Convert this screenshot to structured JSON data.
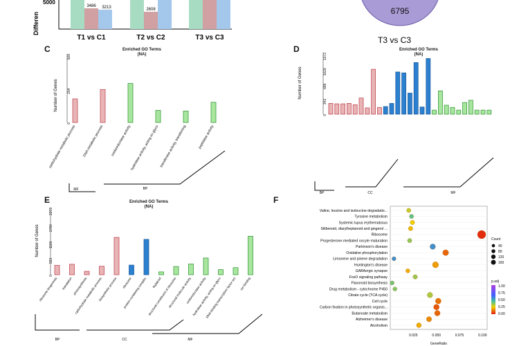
{
  "panels": {
    "A": {
      "ylabel": "Differen",
      "ytick": "5000",
      "categories": [
        "T1 vs C1",
        "T2 vs C2",
        "T3 vs C3"
      ],
      "bar_labels": [
        "3486",
        "3213",
        "2608"
      ]
    },
    "B": {
      "circle_value": "6795",
      "caption": "T3 vs C3"
    },
    "C": {
      "letter": "C",
      "title": "Enriched GO Terms",
      "subtitle": "(NA)",
      "ylabel": "Number of Genes",
      "yticks": [
        "509",
        "254",
        "0"
      ],
      "terms": [
        "carbohydrate metabolic process",
        "DNA metabolic process",
        "oxidoreductase activity",
        "hydrolase activity, acting on glyco",
        "transferase activity, transferring",
        "peptidase activity"
      ],
      "groups": [
        "MF",
        "BP"
      ]
    },
    "D": {
      "letter": "D",
      "title": "Enriched GO Terms",
      "subtitle": "(NA)",
      "ylabel": "Number of Genes",
      "yticks": [
        "1372",
        "1029",
        "686",
        "343",
        "0"
      ],
      "groups": [
        "BP",
        "CC",
        "MF"
      ]
    },
    "E": {
      "letter": "E",
      "title": "Enriched GO Terms",
      "subtitle": "(NA)",
      "ylabel": "Number of Genes",
      "yticks": [
        "2373",
        "1780",
        "1186",
        "593",
        "0"
      ],
      "terms": [
        "ribosome biogenesis",
        "translation",
        "photosynthesis",
        "carbohydrate metabolic process",
        "biosynthetic process",
        "ribosome",
        "protein-containing complex",
        "thylakoid",
        "structural constituent of ribosome",
        "structural molecule activity",
        "oxidoreductase activity",
        "hydrolase activity, acting on glyco",
        "DNA-binding transcription factor act",
        "ion binding"
      ],
      "groups": [
        "BP",
        "CC",
        "MF"
      ]
    },
    "F": {
      "letter": "F",
      "legend_count_title": "Count",
      "legend_count_values": [
        "40",
        "80",
        "120",
        "160"
      ],
      "legend_p_title": "p.adj",
      "legend_p_values": [
        "1.00",
        "0.75",
        "0.50",
        "0.25",
        "0.00"
      ],
      "xticks": [
        "0.025",
        "0.050",
        "0.075",
        "0.100"
      ],
      "xlabel": "GeneRatio"
    }
  },
  "chart_data": [
    {
      "type": "bar",
      "title": "Enriched GO Terms",
      "subtitle": "(NA)",
      "ylabel": "Number of Genes",
      "ylim": [
        0,
        509
      ],
      "categories": [
        "carbohydrate metabolic process",
        "DNA metabolic process",
        "oxidoreductase activity",
        "hydrolase activity, acting on glyco",
        "transferase activity, transferring",
        "peptidase activity"
      ],
      "values": [
        175,
        245,
        290,
        90,
        85,
        150
      ],
      "groups": [
        "BP",
        "BP",
        "MF",
        "MF",
        "MF",
        "MF"
      ]
    },
    {
      "type": "bar",
      "title": "Enriched GO Terms",
      "subtitle": "(NA)",
      "ylabel": "Number of Genes",
      "ylim": [
        0,
        1372
      ],
      "values": [
        240,
        230,
        230,
        240,
        210,
        360,
        140,
        1000,
        150,
        170,
        240,
        940,
        920,
        470,
        1150,
        160,
        1240,
        90,
        520,
        200,
        150,
        90,
        260,
        310,
        90,
        90,
        90
      ],
      "groups": [
        "BP",
        "BP",
        "BP",
        "BP",
        "BP",
        "BP",
        "BP",
        "BP",
        "BP",
        "CC",
        "CC",
        "CC",
        "CC",
        "CC",
        "CC",
        "CC",
        "CC",
        "MF",
        "MF",
        "MF",
        "MF",
        "MF",
        "MF",
        "MF",
        "MF",
        "MF",
        "MF"
      ]
    },
    {
      "type": "bar",
      "title": "Enriched GO Terms",
      "subtitle": "(NA)",
      "ylabel": "Number of Genes",
      "ylim": [
        0,
        2373
      ],
      "categories": [
        "ribosome biogenesis",
        "translation",
        "photosynthesis",
        "carbohydrate metabolic process",
        "biosynthetic process",
        "ribosome",
        "protein-containing complex",
        "thylakoid",
        "structural constituent of ribosome",
        "structural molecule activity",
        "oxidoreductase activity",
        "hydrolase activity, acting on glyco",
        "DNA-binding transcription factor act",
        "ion binding"
      ],
      "values": [
        330,
        370,
        120,
        300,
        1320,
        340,
        1250,
        100,
        290,
        380,
        590,
        180,
        250,
        1360
      ],
      "groups": [
        "BP",
        "BP",
        "BP",
        "BP",
        "BP",
        "CC",
        "CC",
        "MF",
        "MF",
        "MF",
        "MF",
        "MF",
        "MF",
        "MF"
      ]
    },
    {
      "type": "scatter",
      "xlabel": "GeneRatio",
      "xlim": [
        0.0,
        0.105
      ],
      "categories": [
        "Valine, leucine and isoleucine degradatio...",
        "Tyrosine metabolism",
        "Systemic lupus erythematosus",
        "Stilbenoid, diarylheptanoid and gingerol ...",
        "Ribosome",
        "Progesterone-mediated oocyte maturation",
        "Parkinson's disease",
        "Oxidative phosphorylation",
        "Limonene and pinene degradation",
        "Huntington's disease",
        "GABAergic synapse",
        "FoxO signaling pathway",
        "Flavonoid biosynthesis",
        "Drug metabolism - cytochrome P450",
        "Citrate cycle (TCA cycle)",
        "Cell cycle",
        "Carbon fixation in photosynthetic organis...",
        "Butanoate metabolism",
        "Alzheimer's disease",
        "Alcoholism"
      ],
      "gene_ratio": [
        0.02,
        0.023,
        0.024,
        0.022,
        0.099,
        0.021,
        0.046,
        0.06,
        0.004,
        0.049,
        0.019,
        0.027,
        0.002,
        0.005,
        0.043,
        0.052,
        0.05,
        0.051,
        0.042,
        0.031
      ],
      "count": [
        25,
        24,
        28,
        28,
        160,
        26,
        55,
        65,
        22,
        70,
        22,
        28,
        22,
        22,
        50,
        60,
        58,
        56,
        46,
        38
      ],
      "p_adj": [
        0.3,
        0.42,
        0.25,
        0.22,
        0.02,
        0.36,
        0.55,
        0.1,
        0.55,
        0.18,
        0.2,
        0.35,
        0.4,
        0.38,
        0.33,
        0.12,
        0.08,
        0.1,
        0.15,
        0.2
      ]
    }
  ]
}
